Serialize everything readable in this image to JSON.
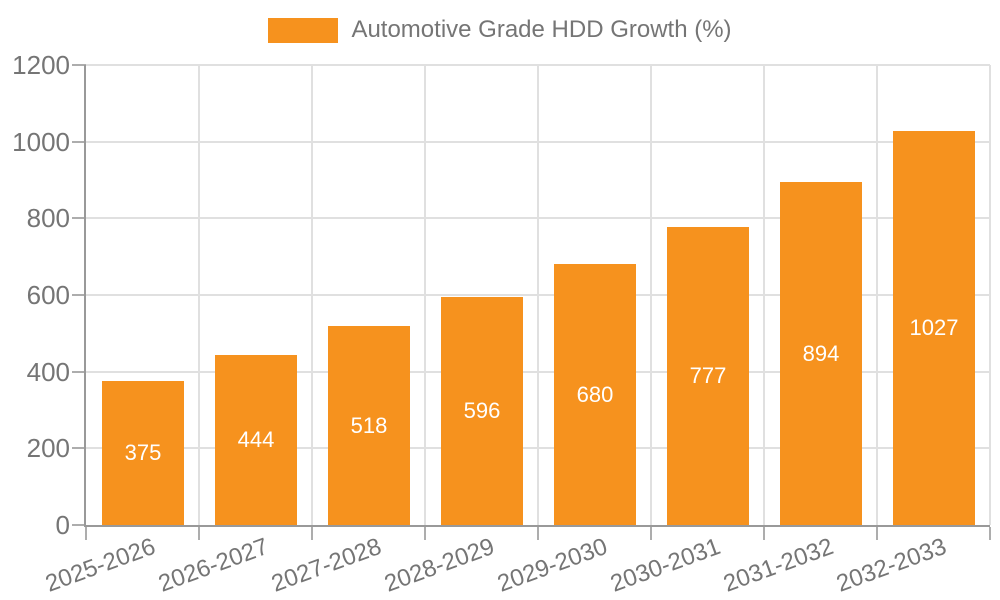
{
  "legend": {
    "label": "Automotive Grade HDD Growth (%)"
  },
  "chart_data": {
    "type": "bar",
    "title": "",
    "series_name": "Automotive Grade HDD Growth (%)",
    "categories": [
      "2025-2026",
      "2026-2027",
      "2027-2028",
      "2028-2029",
      "2029-2030",
      "2030-2031",
      "2031-2032",
      "2032-2033"
    ],
    "values": [
      375,
      444,
      518,
      596,
      680,
      777,
      894,
      1027
    ],
    "bar_labels": [
      "375",
      "444",
      "518",
      "596",
      "680",
      "777",
      "894",
      "1027"
    ],
    "xlabel": "",
    "ylabel": "",
    "ylim": [
      0,
      1200
    ],
    "yticks": [
      0,
      200,
      400,
      600,
      800,
      1000,
      1200
    ],
    "ytick_labels": [
      "0",
      "200",
      "400",
      "600",
      "800",
      "1000",
      "1200"
    ],
    "grid": true,
    "legend_position": "top-center",
    "x_tick_rotation_deg": -20,
    "bar_labels_visible": true
  },
  "colors": {
    "bar": "#F6921E",
    "grid_line": "#E0E0E0",
    "axis_line": "#999999",
    "tick_mark": "#ADADAD",
    "tick_label_text": "#757575",
    "legend_text": "#757575",
    "bar_value_label": "#FFFFFF",
    "background": "#FFFFFF"
  }
}
